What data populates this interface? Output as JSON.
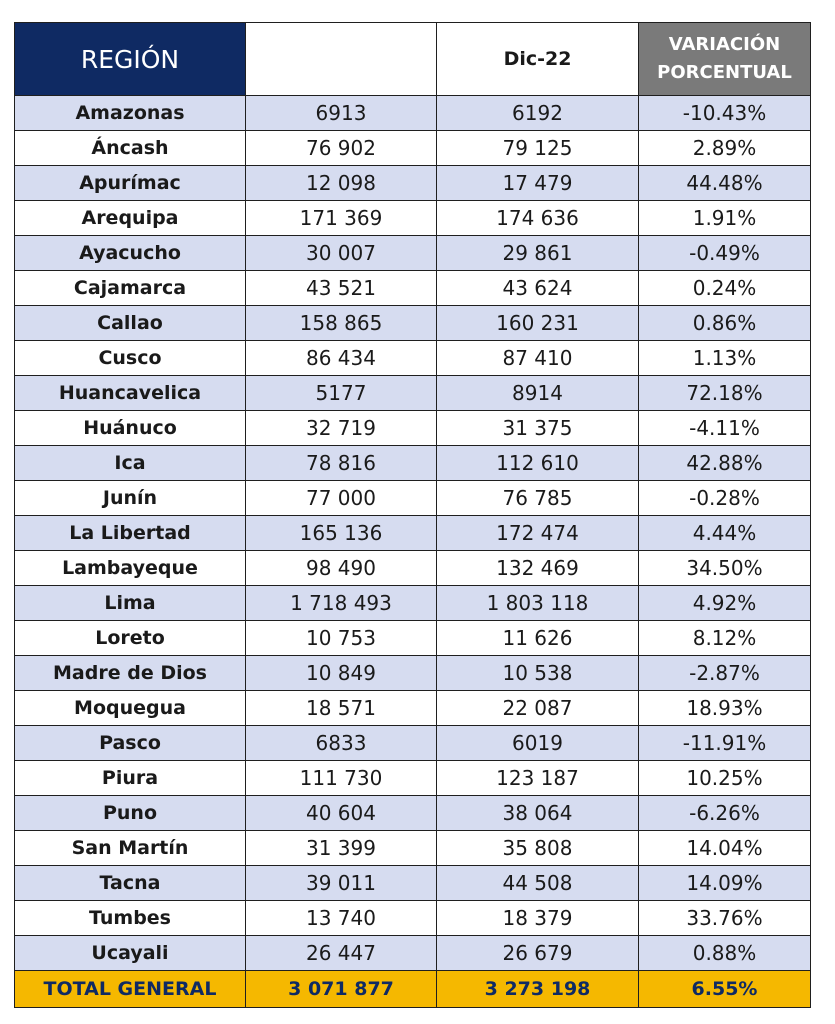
{
  "header": {
    "region": "REGIÓN",
    "col2": "",
    "col3": "Dic-22",
    "variation_line1": "VARIACIÓN",
    "variation_line2": "PORCENTUAL"
  },
  "rows": [
    {
      "region": "Amazonas",
      "a": "6913",
      "b": "6192",
      "v": "-10.43%"
    },
    {
      "region": "Áncash",
      "a": "76 902",
      "b": "79 125",
      "v": "2.89%"
    },
    {
      "region": "Apurímac",
      "a": "12 098",
      "b": "17 479",
      "v": "44.48%"
    },
    {
      "region": "Arequipa",
      "a": "171 369",
      "b": "174 636",
      "v": "1.91%"
    },
    {
      "region": "Ayacucho",
      "a": "30 007",
      "b": "29 861",
      "v": "-0.49%"
    },
    {
      "region": "Cajamarca",
      "a": "43 521",
      "b": "43 624",
      "v": "0.24%"
    },
    {
      "region": "Callao",
      "a": "158 865",
      "b": "160 231",
      "v": "0.86%"
    },
    {
      "region": "Cusco",
      "a": "86 434",
      "b": "87 410",
      "v": "1.13%"
    },
    {
      "region": "Huancavelica",
      "a": "5177",
      "b": "8914",
      "v": "72.18%"
    },
    {
      "region": "Huánuco",
      "a": "32 719",
      "b": "31 375",
      "v": "-4.11%"
    },
    {
      "region": "Ica",
      "a": "78 816",
      "b": "112 610",
      "v": "42.88%"
    },
    {
      "region": "Junín",
      "a": "77 000",
      "b": "76 785",
      "v": "-0.28%"
    },
    {
      "region": "La Libertad",
      "a": "165 136",
      "b": "172 474",
      "v": "4.44%"
    },
    {
      "region": "Lambayeque",
      "a": "98 490",
      "b": "132 469",
      "v": "34.50%"
    },
    {
      "region": "Lima",
      "a": "1 718 493",
      "b": "1 803 118",
      "v": "4.92%"
    },
    {
      "region": "Loreto",
      "a": "10 753",
      "b": "11 626",
      "v": "8.12%"
    },
    {
      "region": "Madre de Dios",
      "a": "10 849",
      "b": "10 538",
      "v": "-2.87%"
    },
    {
      "region": "Moquegua",
      "a": "18 571",
      "b": "22 087",
      "v": "18.93%"
    },
    {
      "region": "Pasco",
      "a": "6833",
      "b": "6019",
      "v": "-11.91%"
    },
    {
      "region": "Piura",
      "a": "111 730",
      "b": "123 187",
      "v": "10.25%"
    },
    {
      "region": "Puno",
      "a": "40 604",
      "b": "38 064",
      "v": "-6.26%"
    },
    {
      "region": "San Martín",
      "a": "31 399",
      "b": "35 808",
      "v": "14.04%"
    },
    {
      "region": "Tacna",
      "a": "39 011",
      "b": "44 508",
      "v": "14.09%"
    },
    {
      "region": "Tumbes",
      "a": "13 740",
      "b": "18 379",
      "v": "33.76%"
    },
    {
      "region": "Ucayali",
      "a": "26 447",
      "b": "26 679",
      "v": "0.88%"
    }
  ],
  "total": {
    "label": "TOTAL GENERAL",
    "a": "3 071 877",
    "b": "3 273 198",
    "v": "6.55%"
  },
  "colors": {
    "header_region_bg": "#0f2a63",
    "header_variation_bg": "#7a7a7a",
    "row_stripe": "#d6dcf0",
    "total_bg": "#f5b800",
    "total_text": "#0f2a63"
  }
}
